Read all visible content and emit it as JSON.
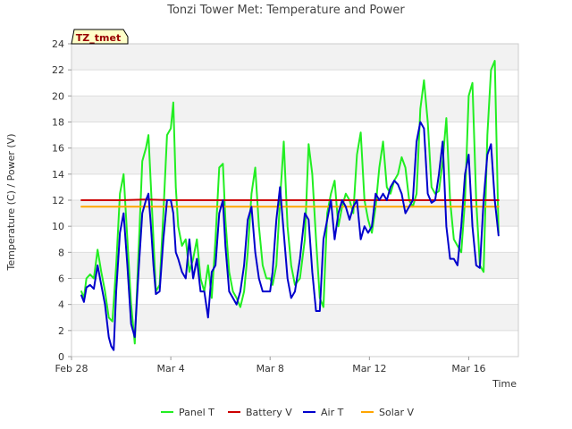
{
  "chart_data": {
    "type": "line",
    "title": "Tonzi Tower Met: Temperature and Power",
    "xlabel": "Time",
    "ylabel": "Temperature (C) / Power (V)",
    "tag": "TZ_tmet",
    "ylim": [
      0,
      24
    ],
    "xlim": [
      0,
      18
    ],
    "x_unit": "days since Feb 28",
    "y_ticks": [
      0,
      2,
      4,
      6,
      8,
      10,
      12,
      14,
      16,
      18,
      20,
      22,
      24
    ],
    "x_ticks": [
      {
        "value": 0,
        "label": "Feb 28"
      },
      {
        "value": 4,
        "label": "Mar 4"
      },
      {
        "value": 8,
        "label": "Mar 8"
      },
      {
        "value": 12,
        "label": "Mar 12"
      },
      {
        "value": 16,
        "label": "Mar 16"
      }
    ],
    "grid": true,
    "legend_position": "bottom",
    "series": [
      {
        "name": "Panel T",
        "color": "#22ee22",
        "x": [
          0.4,
          0.5,
          0.6,
          0.75,
          0.9,
          1.05,
          1.2,
          1.35,
          1.5,
          1.65,
          1.8,
          1.95,
          2.1,
          2.25,
          2.4,
          2.55,
          2.7,
          2.85,
          3.0,
          3.1,
          3.2,
          3.3,
          3.4,
          3.55,
          3.7,
          3.85,
          4.0,
          4.1,
          4.2,
          4.3,
          4.45,
          4.6,
          4.75,
          4.9,
          5.05,
          5.2,
          5.35,
          5.5,
          5.65,
          5.8,
          5.95,
          6.1,
          6.2,
          6.35,
          6.5,
          6.65,
          6.8,
          6.95,
          7.1,
          7.25,
          7.4,
          7.55,
          7.7,
          7.85,
          8.0,
          8.1,
          8.25,
          8.4,
          8.55,
          8.7,
          8.85,
          9.0,
          9.2,
          9.4,
          9.55,
          9.7,
          9.85,
          10.0,
          10.15,
          10.3,
          10.45,
          10.6,
          10.75,
          10.9,
          11.05,
          11.2,
          11.35,
          11.5,
          11.65,
          11.8,
          11.95,
          12.1,
          12.25,
          12.4,
          12.55,
          12.7,
          12.85,
          13.0,
          13.15,
          13.3,
          13.45,
          13.6,
          13.75,
          13.9,
          14.05,
          14.2,
          14.35,
          14.5,
          14.65,
          14.8,
          14.95,
          15.1,
          15.25,
          15.4,
          15.55,
          15.7,
          15.85,
          16.0,
          16.15,
          16.3,
          16.45,
          16.6,
          16.75,
          16.9,
          17.05,
          17.2
        ],
        "values": [
          5.0,
          4.5,
          6.0,
          6.3,
          6.0,
          8.2,
          6.5,
          5.0,
          3.0,
          2.7,
          7.0,
          12.5,
          14.0,
          9.0,
          4.0,
          1.0,
          8.0,
          15.0,
          16.0,
          17.0,
          13.0,
          9.0,
          5.0,
          5.5,
          11.0,
          17.0,
          17.5,
          19.5,
          13.0,
          10.0,
          8.5,
          9.0,
          6.5,
          7.5,
          9.0,
          6.0,
          5.0,
          7.0,
          4.5,
          9.0,
          14.5,
          14.8,
          10.5,
          6.5,
          5.0,
          4.5,
          3.8,
          5.0,
          8.0,
          12.5,
          14.5,
          10.0,
          7.0,
          6.0,
          6.0,
          5.5,
          7.0,
          12.0,
          16.5,
          10.0,
          7.0,
          5.5,
          6.0,
          9.0,
          16.3,
          14.0,
          9.0,
          4.5,
          3.8,
          11.0,
          12.5,
          13.5,
          10.0,
          11.5,
          12.5,
          12.0,
          11.0,
          15.5,
          17.2,
          12.0,
          10.5,
          9.5,
          11.5,
          14.5,
          16.5,
          13.0,
          12.5,
          13.5,
          14.0,
          15.3,
          14.5,
          12.0,
          11.5,
          12.5,
          19.0,
          21.2,
          18.0,
          13.0,
          12.5,
          12.7,
          15.0,
          18.3,
          12.0,
          9.0,
          8.5,
          8.0,
          12.0,
          20.0,
          21.0,
          12.0,
          7.0,
          6.5,
          17.0,
          22.0,
          22.7,
          9.5
        ]
      },
      {
        "name": "Battery V",
        "color": "#cc0000",
        "x": [
          0.4,
          1.0,
          2.0,
          3.0,
          4.0,
          5.0,
          6.0,
          7.0,
          8.0,
          9.0,
          10.0,
          11.0,
          12.0,
          13.0,
          14.0,
          15.0,
          16.0,
          17.0,
          17.2
        ],
        "values": [
          12.0,
          12.0,
          12.0,
          12.05,
          12.0,
          12.0,
          12.0,
          12.0,
          12.0,
          12.0,
          12.0,
          12.0,
          12.0,
          12.0,
          12.0,
          12.0,
          12.0,
          12.0,
          12.0
        ]
      },
      {
        "name": "Air T",
        "color": "#0000cc",
        "x": [
          0.4,
          0.5,
          0.6,
          0.75,
          0.9,
          1.05,
          1.2,
          1.35,
          1.5,
          1.6,
          1.7,
          1.8,
          1.95,
          2.1,
          2.25,
          2.4,
          2.55,
          2.7,
          2.85,
          3.0,
          3.1,
          3.2,
          3.3,
          3.4,
          3.55,
          3.7,
          3.85,
          4.0,
          4.1,
          4.2,
          4.3,
          4.45,
          4.6,
          4.75,
          4.9,
          5.05,
          5.2,
          5.35,
          5.5,
          5.65,
          5.8,
          5.95,
          6.1,
          6.2,
          6.35,
          6.5,
          6.65,
          6.8,
          6.95,
          7.1,
          7.25,
          7.4,
          7.55,
          7.7,
          7.85,
          8.0,
          8.1,
          8.25,
          8.4,
          8.55,
          8.7,
          8.85,
          9.0,
          9.2,
          9.4,
          9.55,
          9.7,
          9.85,
          10.0,
          10.15,
          10.3,
          10.45,
          10.6,
          10.75,
          10.9,
          11.05,
          11.2,
          11.35,
          11.5,
          11.65,
          11.8,
          11.95,
          12.1,
          12.25,
          12.4,
          12.55,
          12.7,
          12.85,
          13.0,
          13.15,
          13.3,
          13.45,
          13.6,
          13.75,
          13.9,
          14.05,
          14.2,
          14.35,
          14.5,
          14.65,
          14.8,
          14.95,
          15.1,
          15.25,
          15.4,
          15.55,
          15.7,
          15.85,
          16.0,
          16.15,
          16.3,
          16.45,
          16.6,
          16.75,
          16.9,
          17.05,
          17.2
        ],
        "values": [
          4.7,
          4.2,
          5.3,
          5.5,
          5.2,
          7.0,
          5.5,
          4.0,
          1.5,
          0.8,
          0.5,
          5.0,
          9.5,
          11.0,
          7.0,
          2.5,
          1.5,
          6.5,
          11.0,
          12.0,
          12.5,
          10.0,
          7.0,
          4.8,
          5.0,
          9.0,
          12.0,
          12.0,
          11.0,
          8.0,
          7.5,
          6.5,
          6.0,
          9.0,
          6.0,
          7.5,
          5.0,
          5.0,
          3.0,
          6.5,
          7.0,
          11.0,
          12.0,
          8.5,
          5.0,
          4.5,
          4.0,
          5.0,
          7.0,
          10.5,
          11.5,
          8.0,
          6.0,
          5.0,
          5.0,
          5.0,
          6.5,
          10.5,
          13.0,
          9.5,
          6.0,
          4.5,
          5.0,
          7.5,
          11.0,
          10.5,
          6.5,
          3.5,
          3.5,
          9.0,
          10.5,
          12.0,
          9.0,
          11.0,
          12.0,
          11.5,
          10.5,
          11.5,
          12.0,
          9.0,
          10.0,
          9.5,
          10.0,
          12.5,
          12.0,
          12.5,
          12.0,
          13.0,
          13.5,
          13.2,
          12.5,
          11.0,
          11.5,
          12.0,
          16.5,
          18.0,
          17.5,
          12.5,
          11.8,
          12.0,
          14.0,
          16.5,
          10.0,
          7.5,
          7.5,
          7.0,
          10.0,
          14.0,
          15.5,
          10.0,
          7.0,
          6.8,
          12.0,
          15.5,
          16.3,
          12.0,
          9.3
        ]
      },
      {
        "name": "Solar V",
        "color": "#ffa500",
        "x": [
          0.4,
          1.0,
          2.0,
          3.0,
          4.0,
          5.0,
          6.0,
          7.0,
          8.0,
          9.0,
          10.0,
          11.0,
          12.0,
          13.0,
          14.0,
          15.0,
          16.0,
          17.0,
          17.2
        ],
        "values": [
          11.5,
          11.5,
          11.5,
          11.5,
          11.5,
          11.5,
          11.5,
          11.5,
          11.5,
          11.5,
          11.5,
          11.5,
          11.5,
          11.5,
          11.5,
          11.5,
          11.5,
          11.5,
          11.5
        ]
      }
    ]
  }
}
